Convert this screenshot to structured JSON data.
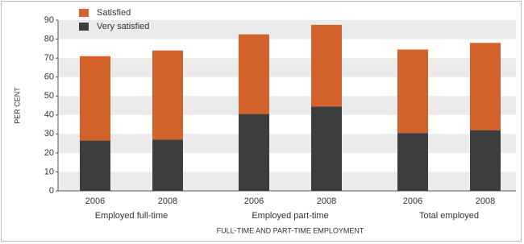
{
  "chart_data": {
    "type": "stacked-bar",
    "y_label": "PER CENT",
    "x_label": "FULL-TIME AND PART-TIME EMPLOYMENT",
    "categories": [
      "2006",
      "2008",
      "2006",
      "2008",
      "2006",
      "2008"
    ],
    "groups": [
      "Employed full-time",
      "Employed part-time",
      "Total employed"
    ],
    "series": [
      {
        "name": "Very satisfied",
        "color": "#3d3d3d",
        "values": [
          26.5,
          27,
          40.5,
          44.5,
          30.5,
          32
        ]
      },
      {
        "name": "Satisfied",
        "color": "#d2622a",
        "values": [
          44.5,
          47,
          42,
          43,
          44,
          46
        ]
      }
    ],
    "ylim": [
      0,
      90
    ],
    "yticks": [
      0,
      10,
      20,
      30,
      40,
      50,
      60,
      70,
      80,
      90
    ],
    "grid": "bands"
  }
}
